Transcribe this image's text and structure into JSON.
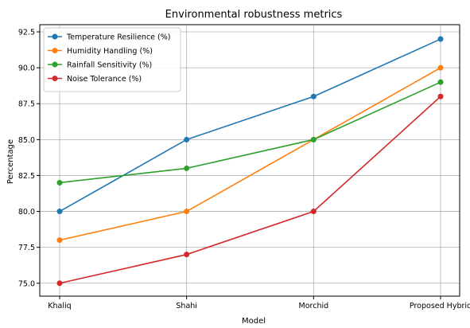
{
  "chart_data": {
    "type": "line",
    "title": "Environmental robustness metrics",
    "xlabel": "Model",
    "ylabel": "Percentage",
    "categories": [
      "Khaliq",
      "Shahi",
      "Morchid",
      "Proposed Hybrid"
    ],
    "ylim": [
      74.1,
      93.0
    ],
    "yticks": [
      "75.0",
      "77.5",
      "80.0",
      "82.5",
      "85.0",
      "87.5",
      "90.0",
      "92.5"
    ],
    "grid": true,
    "legend_position": "top-left",
    "series": [
      {
        "name": "Temperature Resilience (%)",
        "color": "#1f77b4",
        "values": [
          80,
          85,
          88,
          92
        ]
      },
      {
        "name": "Humidity Handling (%)",
        "color": "#ff7f0e",
        "values": [
          78,
          80,
          85,
          90
        ]
      },
      {
        "name": "Rainfall Sensitivity (%)",
        "color": "#2ca02c",
        "values": [
          82,
          83,
          85,
          89
        ]
      },
      {
        "name": "Noise Tolerance (%)",
        "color": "#d62728",
        "values": [
          75,
          77,
          80,
          88
        ]
      }
    ]
  }
}
